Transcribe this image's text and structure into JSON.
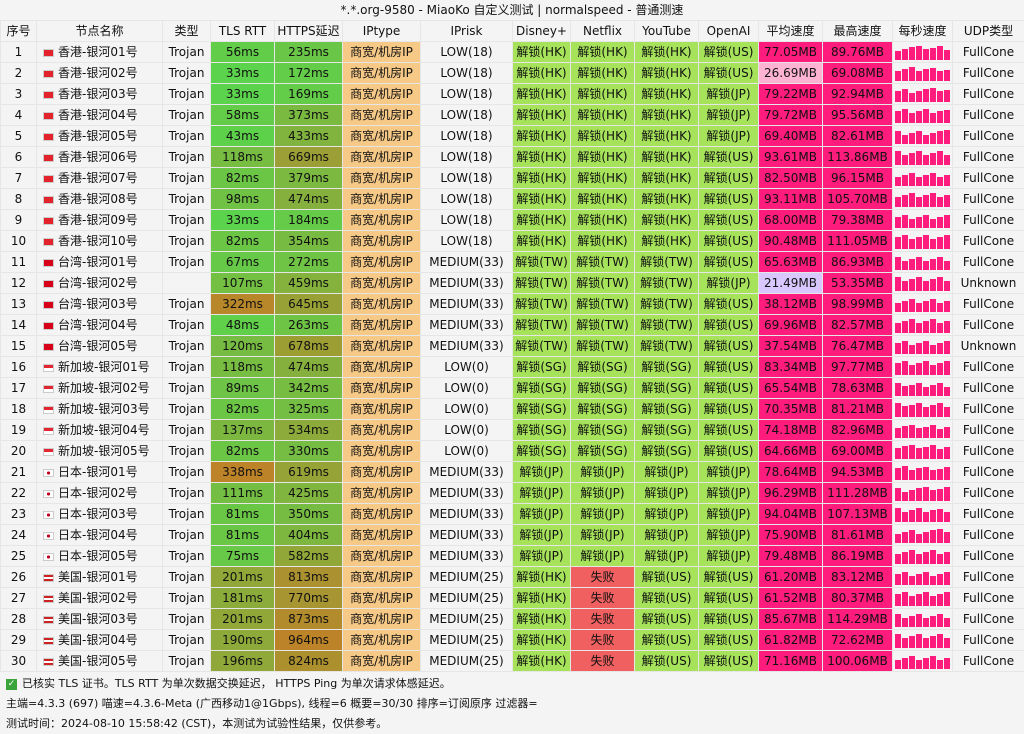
{
  "title": "*.*.org-9580 - MiaoKo 自定义测试 | normalspeed - 普通测速",
  "headers": [
    "序号",
    "节点名称",
    "类型",
    "TLS RTT",
    "HTTPS延迟",
    "IPtype",
    "IPrisk",
    "Disney+",
    "Netflix",
    "YouTube",
    "OpenAI",
    "平均速度",
    "最高速度",
    "每秒速度",
    "UDP类型"
  ],
  "colors": {
    "header_bg": "#f4f4f4",
    "ok_green": "#a6e35b",
    "fail_red": "#f06060",
    "iptype_bg": "#f6c987",
    "speed_pink": "#ff1c7c",
    "speed_light": "#ffb3d2",
    "speed_lavender": "#d8c8ff"
  },
  "rows": [
    {
      "id": "1",
      "name": "香港-银河01号",
      "type": "Trojan",
      "tls": "56ms",
      "https": "235ms",
      "iptype": "商宽/机房IP",
      "iprisk": "LOW(18)",
      "disney": "解锁(HK)",
      "netflix": "解锁(HK)",
      "youtube": "解锁(HK)",
      "openai": "解锁(US)",
      "avg": "77.05MB",
      "max": "89.76MB",
      "udp": "FullCone",
      "flag": "hk"
    },
    {
      "id": "2",
      "name": "香港-银河02号",
      "type": "Trojan",
      "tls": "33ms",
      "https": "172ms",
      "iptype": "商宽/机房IP",
      "iprisk": "LOW(18)",
      "disney": "解锁(HK)",
      "netflix": "解锁(HK)",
      "youtube": "解锁(HK)",
      "openai": "解锁(US)",
      "avg": "26.69MB",
      "max": "69.08MB",
      "udp": "FullCone",
      "flag": "hk"
    },
    {
      "id": "3",
      "name": "香港-银河03号",
      "type": "Trojan",
      "tls": "33ms",
      "https": "169ms",
      "iptype": "商宽/机房IP",
      "iprisk": "LOW(18)",
      "disney": "解锁(HK)",
      "netflix": "解锁(HK)",
      "youtube": "解锁(HK)",
      "openai": "解锁(JP)",
      "avg": "79.22MB",
      "max": "92.94MB",
      "udp": "FullCone",
      "flag": "hk"
    },
    {
      "id": "4",
      "name": "香港-银河04号",
      "type": "Trojan",
      "tls": "58ms",
      "https": "373ms",
      "iptype": "商宽/机房IP",
      "iprisk": "LOW(18)",
      "disney": "解锁(HK)",
      "netflix": "解锁(HK)",
      "youtube": "解锁(HK)",
      "openai": "解锁(JP)",
      "avg": "79.72MB",
      "max": "95.56MB",
      "udp": "FullCone",
      "flag": "hk"
    },
    {
      "id": "5",
      "name": "香港-银河05号",
      "type": "Trojan",
      "tls": "43ms",
      "https": "433ms",
      "iptype": "商宽/机房IP",
      "iprisk": "LOW(18)",
      "disney": "解锁(HK)",
      "netflix": "解锁(HK)",
      "youtube": "解锁(HK)",
      "openai": "解锁(JP)",
      "avg": "69.40MB",
      "max": "82.61MB",
      "udp": "FullCone",
      "flag": "hk"
    },
    {
      "id": "6",
      "name": "香港-银河06号",
      "type": "Trojan",
      "tls": "118ms",
      "https": "669ms",
      "iptype": "商宽/机房IP",
      "iprisk": "LOW(18)",
      "disney": "解锁(HK)",
      "netflix": "解锁(HK)",
      "youtube": "解锁(HK)",
      "openai": "解锁(US)",
      "avg": "93.61MB",
      "max": "113.86MB",
      "udp": "FullCone",
      "flag": "hk"
    },
    {
      "id": "7",
      "name": "香港-银河07号",
      "type": "Trojan",
      "tls": "82ms",
      "https": "379ms",
      "iptype": "商宽/机房IP",
      "iprisk": "LOW(18)",
      "disney": "解锁(HK)",
      "netflix": "解锁(HK)",
      "youtube": "解锁(HK)",
      "openai": "解锁(US)",
      "avg": "82.50MB",
      "max": "96.15MB",
      "udp": "FullCone",
      "flag": "hk"
    },
    {
      "id": "8",
      "name": "香港-银河08号",
      "type": "Trojan",
      "tls": "98ms",
      "https": "474ms",
      "iptype": "商宽/机房IP",
      "iprisk": "LOW(18)",
      "disney": "解锁(HK)",
      "netflix": "解锁(HK)",
      "youtube": "解锁(HK)",
      "openai": "解锁(US)",
      "avg": "93.11MB",
      "max": "105.70MB",
      "udp": "FullCone",
      "flag": "hk"
    },
    {
      "id": "9",
      "name": "香港-银河09号",
      "type": "Trojan",
      "tls": "33ms",
      "https": "184ms",
      "iptype": "商宽/机房IP",
      "iprisk": "LOW(18)",
      "disney": "解锁(HK)",
      "netflix": "解锁(HK)",
      "youtube": "解锁(HK)",
      "openai": "解锁(US)",
      "avg": "68.00MB",
      "max": "79.38MB",
      "udp": "FullCone",
      "flag": "hk"
    },
    {
      "id": "10",
      "name": "香港-银河10号",
      "type": "Trojan",
      "tls": "82ms",
      "https": "354ms",
      "iptype": "商宽/机房IP",
      "iprisk": "LOW(18)",
      "disney": "解锁(HK)",
      "netflix": "解锁(HK)",
      "youtube": "解锁(HK)",
      "openai": "解锁(US)",
      "avg": "90.48MB",
      "max": "111.05MB",
      "udp": "FullCone",
      "flag": "hk"
    },
    {
      "id": "11",
      "name": "台湾-银河01号",
      "type": "Trojan",
      "tls": "67ms",
      "https": "272ms",
      "iptype": "商宽/机房IP",
      "iprisk": "MEDIUM(33)",
      "disney": "解锁(TW)",
      "netflix": "解锁(TW)",
      "youtube": "解锁(TW)",
      "openai": "解锁(US)",
      "avg": "65.63MB",
      "max": "86.93MB",
      "udp": "FullCone",
      "flag": "tw"
    },
    {
      "id": "12",
      "name": "台湾-银河02号",
      "type": "",
      "tls": "107ms",
      "https": "459ms",
      "iptype": "商宽/机房IP",
      "iprisk": "MEDIUM(33)",
      "disney": "解锁(TW)",
      "netflix": "解锁(TW)",
      "youtube": "解锁(TW)",
      "openai": "解锁(JP)",
      "avg": "21.49MB",
      "max": "53.35MB",
      "udp": "Unknown",
      "flag": "tw"
    },
    {
      "id": "13",
      "name": "台湾-银河03号",
      "type": "Trojan",
      "tls": "322ms",
      "https": "645ms",
      "iptype": "商宽/机房IP",
      "iprisk": "MEDIUM(33)",
      "disney": "解锁(TW)",
      "netflix": "解锁(TW)",
      "youtube": "解锁(TW)",
      "openai": "解锁(US)",
      "avg": "38.12MB",
      "max": "98.99MB",
      "udp": "FullCone",
      "flag": "tw"
    },
    {
      "id": "14",
      "name": "台湾-银河04号",
      "type": "Trojan",
      "tls": "48ms",
      "https": "263ms",
      "iptype": "商宽/机房IP",
      "iprisk": "MEDIUM(33)",
      "disney": "解锁(TW)",
      "netflix": "解锁(TW)",
      "youtube": "解锁(TW)",
      "openai": "解锁(US)",
      "avg": "69.96MB",
      "max": "82.57MB",
      "udp": "FullCone",
      "flag": "tw"
    },
    {
      "id": "15",
      "name": "台湾-银河05号",
      "type": "Trojan",
      "tls": "120ms",
      "https": "678ms",
      "iptype": "商宽/机房IP",
      "iprisk": "MEDIUM(33)",
      "disney": "解锁(TW)",
      "netflix": "解锁(TW)",
      "youtube": "解锁(TW)",
      "openai": "解锁(US)",
      "avg": "37.54MB",
      "max": "76.47MB",
      "udp": "Unknown",
      "flag": "tw"
    },
    {
      "id": "16",
      "name": "新加坡-银河01号",
      "type": "Trojan",
      "tls": "118ms",
      "https": "474ms",
      "iptype": "商宽/机房IP",
      "iprisk": "LOW(0)",
      "disney": "解锁(SG)",
      "netflix": "解锁(SG)",
      "youtube": "解锁(SG)",
      "openai": "解锁(US)",
      "avg": "83.34MB",
      "max": "97.77MB",
      "udp": "FullCone",
      "flag": "sg"
    },
    {
      "id": "17",
      "name": "新加坡-银河02号",
      "type": "Trojan",
      "tls": "89ms",
      "https": "342ms",
      "iptype": "商宽/机房IP",
      "iprisk": "LOW(0)",
      "disney": "解锁(SG)",
      "netflix": "解锁(SG)",
      "youtube": "解锁(SG)",
      "openai": "解锁(US)",
      "avg": "65.54MB",
      "max": "78.63MB",
      "udp": "FullCone",
      "flag": "sg"
    },
    {
      "id": "18",
      "name": "新加坡-银河03号",
      "type": "Trojan",
      "tls": "82ms",
      "https": "325ms",
      "iptype": "商宽/机房IP",
      "iprisk": "LOW(0)",
      "disney": "解锁(SG)",
      "netflix": "解锁(SG)",
      "youtube": "解锁(SG)",
      "openai": "解锁(US)",
      "avg": "70.35MB",
      "max": "81.21MB",
      "udp": "FullCone",
      "flag": "sg"
    },
    {
      "id": "19",
      "name": "新加坡-银河04号",
      "type": "Trojan",
      "tls": "137ms",
      "https": "534ms",
      "iptype": "商宽/机房IP",
      "iprisk": "LOW(0)",
      "disney": "解锁(SG)",
      "netflix": "解锁(SG)",
      "youtube": "解锁(SG)",
      "openai": "解锁(US)",
      "avg": "74.18MB",
      "max": "82.96MB",
      "udp": "FullCone",
      "flag": "sg"
    },
    {
      "id": "20",
      "name": "新加坡-银河05号",
      "type": "Trojan",
      "tls": "82ms",
      "https": "330ms",
      "iptype": "商宽/机房IP",
      "iprisk": "LOW(0)",
      "disney": "解锁(SG)",
      "netflix": "解锁(SG)",
      "youtube": "解锁(SG)",
      "openai": "解锁(US)",
      "avg": "64.66MB",
      "max": "69.00MB",
      "udp": "FullCone",
      "flag": "sg"
    },
    {
      "id": "21",
      "name": "日本-银河01号",
      "type": "Trojan",
      "tls": "338ms",
      "https": "619ms",
      "iptype": "商宽/机房IP",
      "iprisk": "MEDIUM(33)",
      "disney": "解锁(JP)",
      "netflix": "解锁(JP)",
      "youtube": "解锁(JP)",
      "openai": "解锁(JP)",
      "avg": "78.64MB",
      "max": "94.53MB",
      "udp": "FullCone",
      "flag": "jp"
    },
    {
      "id": "22",
      "name": "日本-银河02号",
      "type": "Trojan",
      "tls": "111ms",
      "https": "425ms",
      "iptype": "商宽/机房IP",
      "iprisk": "MEDIUM(33)",
      "disney": "解锁(JP)",
      "netflix": "解锁(JP)",
      "youtube": "解锁(JP)",
      "openai": "解锁(JP)",
      "avg": "96.29MB",
      "max": "111.28MB",
      "udp": "FullCone",
      "flag": "jp"
    },
    {
      "id": "23",
      "name": "日本-银河03号",
      "type": "Trojan",
      "tls": "81ms",
      "https": "350ms",
      "iptype": "商宽/机房IP",
      "iprisk": "MEDIUM(33)",
      "disney": "解锁(JP)",
      "netflix": "解锁(JP)",
      "youtube": "解锁(JP)",
      "openai": "解锁(JP)",
      "avg": "94.04MB",
      "max": "107.13MB",
      "udp": "FullCone",
      "flag": "jp"
    },
    {
      "id": "24",
      "name": "日本-银河04号",
      "type": "Trojan",
      "tls": "81ms",
      "https": "404ms",
      "iptype": "商宽/机房IP",
      "iprisk": "MEDIUM(33)",
      "disney": "解锁(JP)",
      "netflix": "解锁(JP)",
      "youtube": "解锁(JP)",
      "openai": "解锁(JP)",
      "avg": "75.90MB",
      "max": "81.61MB",
      "udp": "FullCone",
      "flag": "jp"
    },
    {
      "id": "25",
      "name": "日本-银河05号",
      "type": "Trojan",
      "tls": "75ms",
      "https": "582ms",
      "iptype": "商宽/机房IP",
      "iprisk": "MEDIUM(33)",
      "disney": "解锁(JP)",
      "netflix": "解锁(JP)",
      "youtube": "解锁(JP)",
      "openai": "解锁(JP)",
      "avg": "79.48MB",
      "max": "86.19MB",
      "udp": "FullCone",
      "flag": "jp"
    },
    {
      "id": "26",
      "name": "美国-银河01号",
      "type": "Trojan",
      "tls": "201ms",
      "https": "813ms",
      "iptype": "商宽/机房IP",
      "iprisk": "MEDIUM(25)",
      "disney": "解锁(HK)",
      "netflix": "失败",
      "youtube": "解锁(US)",
      "openai": "解锁(US)",
      "avg": "61.20MB",
      "max": "83.12MB",
      "udp": "FullCone",
      "flag": "us"
    },
    {
      "id": "27",
      "name": "美国-银河02号",
      "type": "Trojan",
      "tls": "181ms",
      "https": "770ms",
      "iptype": "商宽/机房IP",
      "iprisk": "MEDIUM(25)",
      "disney": "解锁(HK)",
      "netflix": "失败",
      "youtube": "解锁(US)",
      "openai": "解锁(US)",
      "avg": "61.52MB",
      "max": "80.37MB",
      "udp": "FullCone",
      "flag": "us"
    },
    {
      "id": "28",
      "name": "美国-银河03号",
      "type": "Trojan",
      "tls": "201ms",
      "https": "873ms",
      "iptype": "商宽/机房IP",
      "iprisk": "MEDIUM(25)",
      "disney": "解锁(HK)",
      "netflix": "失败",
      "youtube": "解锁(US)",
      "openai": "解锁(US)",
      "avg": "85.67MB",
      "max": "114.29MB",
      "udp": "FullCone",
      "flag": "us"
    },
    {
      "id": "29",
      "name": "美国-银河04号",
      "type": "Trojan",
      "tls": "190ms",
      "https": "964ms",
      "iptype": "商宽/机房IP",
      "iprisk": "MEDIUM(25)",
      "disney": "解锁(HK)",
      "netflix": "失败",
      "youtube": "解锁(US)",
      "openai": "解锁(US)",
      "avg": "61.82MB",
      "max": "72.62MB",
      "udp": "FullCone",
      "flag": "us"
    },
    {
      "id": "30",
      "name": "美国-银河05号",
      "type": "Trojan",
      "tls": "196ms",
      "https": "824ms",
      "iptype": "商宽/机房IP",
      "iprisk": "MEDIUM(25)",
      "disney": "解锁(HK)",
      "netflix": "失败",
      "youtube": "解锁(US)",
      "openai": "解锁(US)",
      "avg": "71.16MB",
      "max": "100.06MB",
      "udp": "FullCone",
      "flag": "us"
    }
  ],
  "footer": {
    "line1": "已核实 TLS 证书。TLS RTT 为单次数据交换延迟， HTTPS Ping 为单次请求体感延迟。",
    "line2": "主端=4.3.3 (697) 喵速=4.3.6-Meta (广西移动1@1Gbps), 线程=6 概要=30/30 排序=订阅原序 过滤器=",
    "line3": "测试时间：2024-08-10 15:58:42 (CST)，本测试为试验性结果，仅供参考。"
  }
}
